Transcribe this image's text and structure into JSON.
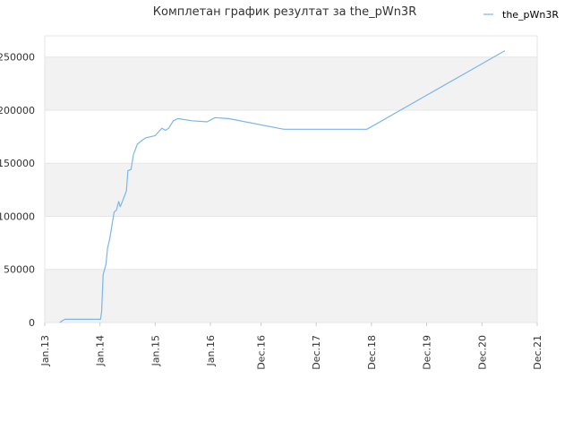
{
  "chart_data": {
    "type": "line",
    "title": "Комплетан график резултат за the_pWn3R",
    "xlabel": "",
    "ylabel": "",
    "legend": {
      "position": "top-right"
    },
    "grid": true,
    "colors": {
      "line": "#7cb5ec",
      "band": "#f2f2f2",
      "plot_border": "#e6e6e6",
      "gridline": "#e6e6e6"
    },
    "x_range": [
      "2013-01-01",
      "2021-12-01"
    ],
    "ylim": [
      0,
      270000
    ],
    "y_ticks": [
      0,
      50000,
      100000,
      150000,
      200000,
      250000
    ],
    "y_tick_labels": [
      "0",
      "50000",
      "100000",
      "150000",
      "200000",
      "250000"
    ],
    "x_ticks": [
      "2013-01-01",
      "2014-01-01",
      "2015-01-01",
      "2016-01-01",
      "2016-12-01",
      "2017-12-01",
      "2018-12-01",
      "2019-12-01",
      "2020-12-01",
      "2021-12-01"
    ],
    "x_tick_labels": [
      "Jan.13",
      "Jan.14",
      "Jan.15",
      "Jan.16",
      "Dec.16",
      "Dec.17",
      "Dec.18",
      "Dec.19",
      "Dec.20",
      "Dec.21"
    ],
    "series": [
      {
        "name": "the_pWn3R",
        "points": [
          [
            "2013-04-10",
            0
          ],
          [
            "2013-04-25",
            1500
          ],
          [
            "2013-05-15",
            3000
          ],
          [
            "2014-01-05",
            3000
          ],
          [
            "2014-01-12",
            10000
          ],
          [
            "2014-01-18",
            30000
          ],
          [
            "2014-01-22",
            45000
          ],
          [
            "2014-02-10",
            55000
          ],
          [
            "2014-02-20",
            70000
          ],
          [
            "2014-03-05",
            78000
          ],
          [
            "2014-03-15",
            86000
          ],
          [
            "2014-03-25",
            95000
          ],
          [
            "2014-04-05",
            104000
          ],
          [
            "2014-04-20",
            106000
          ],
          [
            "2014-05-05",
            114000
          ],
          [
            "2014-05-15",
            109000
          ],
          [
            "2014-06-01",
            115000
          ],
          [
            "2014-06-25",
            124000
          ],
          [
            "2014-07-05",
            143000
          ],
          [
            "2014-07-25",
            144000
          ],
          [
            "2014-08-10",
            158000
          ],
          [
            "2014-09-05",
            168000
          ],
          [
            "2014-10-10",
            172000
          ],
          [
            "2014-11-01",
            174000
          ],
          [
            "2015-01-01",
            176000
          ],
          [
            "2015-02-15",
            183000
          ],
          [
            "2015-03-10",
            181000
          ],
          [
            "2015-04-01",
            183000
          ],
          [
            "2015-05-01",
            190000
          ],
          [
            "2015-06-01",
            192000
          ],
          [
            "2015-09-01",
            190000
          ],
          [
            "2015-12-10",
            189000
          ],
          [
            "2016-02-01",
            193000
          ],
          [
            "2016-05-01",
            192000
          ],
          [
            "2017-05-01",
            182000
          ],
          [
            "2018-11-01",
            182000
          ],
          [
            "2021-05-01",
            256000
          ]
        ]
      }
    ]
  }
}
